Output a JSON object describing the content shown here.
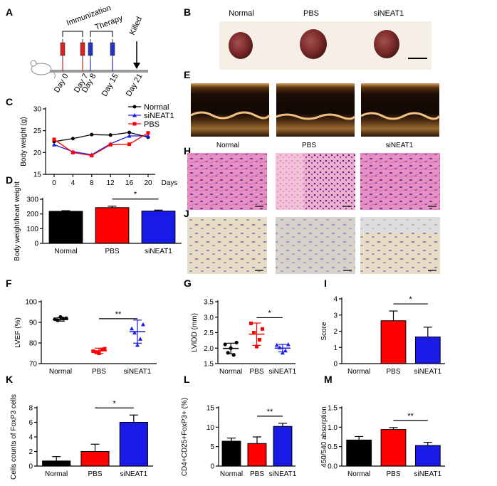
{
  "figure": {
    "panel_labels": [
      "A",
      "B",
      "C",
      "D",
      "E",
      "F",
      "G",
      "H",
      "I",
      "J",
      "K",
      "L",
      "M"
    ]
  },
  "panel_a": {
    "events": [
      "Immunization",
      "Therapy",
      "Killed"
    ],
    "days": [
      "Day 0",
      "Day 7",
      "Day 8",
      "Day 15",
      "Day 21"
    ]
  },
  "panel_b": {
    "labels": [
      "Normal",
      "PBS",
      "siNEAT1"
    ]
  },
  "panel_h": {
    "labels": [
      "Normal",
      "PBS",
      "siNEAT1"
    ]
  },
  "colors": {
    "normal": "#000000",
    "pbs": "#ff0000",
    "sineat1": "#1a1ae6"
  },
  "chart_data": [
    {
      "id": "C",
      "type": "line",
      "xlabel": "Days",
      "ylabel": "Body weight (g)",
      "x": [
        0,
        4,
        8,
        12,
        16,
        20
      ],
      "ylim": [
        15,
        30
      ],
      "xticks": [
        "0",
        "4",
        "8",
        "12",
        "16",
        "20"
      ],
      "yticks": [
        "15",
        "20",
        "25",
        "30"
      ],
      "series": [
        {
          "name": "Normal",
          "values": [
            22.5,
            23.2,
            24.1,
            24.0,
            24.6,
            23.5
          ]
        },
        {
          "name": "siNEAT1",
          "values": [
            21.8,
            20.2,
            19.5,
            22.0,
            23.8,
            23.8
          ]
        },
        {
          "name": "PBS",
          "values": [
            23.0,
            20.0,
            19.3,
            21.8,
            21.9,
            24.5
          ]
        }
      ]
    },
    {
      "id": "D",
      "type": "bar",
      "ylabel": "Body weight/heart weight",
      "categories": [
        "Normal",
        "PBS",
        "siNEAT1"
      ],
      "values": [
        218,
        243,
        220
      ],
      "errors": [
        4,
        10,
        6
      ],
      "ylim": [
        0,
        300
      ],
      "yticks": [
        "0",
        "100",
        "200",
        "300"
      ],
      "significance": {
        "from": 1,
        "to": 2,
        "label": "*"
      }
    },
    {
      "id": "F",
      "type": "scatter",
      "ylabel": "LVEF (%)",
      "categories": [
        "Normal",
        "PBS",
        "siNEAT1"
      ],
      "points": [
        [
          91.5,
          92.0,
          91.0,
          91.8,
          92.6
        ],
        [
          76.0,
          77.2,
          75.5,
          76.8,
          75.0
        ],
        [
          87.0,
          89.0,
          85.0,
          82.0,
          79.0
        ]
      ],
      "means": [
        91.4,
        76.2,
        85.5
      ],
      "sd": [
        0.8,
        1.3,
        5.6
      ],
      "ylim": [
        70,
        100
      ],
      "yticks": [
        "70",
        "80",
        "90",
        "100"
      ],
      "significance": {
        "from": 1,
        "to": 2,
        "label": "**"
      }
    },
    {
      "id": "G",
      "type": "scatter",
      "ylabel": "LVIDD (mm)",
      "categories": [
        "Normal",
        "PBS",
        "siNEAT1"
      ],
      "points": [
        [
          2.12,
          2.18,
          1.85,
          1.78,
          2.0
        ],
        [
          2.8,
          2.62,
          2.5,
          2.27,
          2.05
        ],
        [
          2.1,
          2.12,
          2.02,
          1.92,
          1.85
        ]
      ],
      "means": [
        1.99,
        2.45,
        2.0
      ],
      "sd": [
        0.17,
        0.36,
        0.12
      ],
      "ylim": [
        1.5,
        3.5
      ],
      "yticks": [
        "1.5",
        "2.0",
        "2.5",
        "3.0",
        "3.5"
      ],
      "significance": {
        "from": 1,
        "to": 2,
        "label": "*"
      }
    },
    {
      "id": "I",
      "type": "bar",
      "ylabel": "Score",
      "categories": [
        "Normal",
        "PBS",
        "siNEAT1"
      ],
      "values": [
        0,
        2.65,
        1.65
      ],
      "errors": [
        0,
        0.6,
        0.6
      ],
      "ylim": [
        0,
        4
      ],
      "yticks": [
        "0",
        "1",
        "2",
        "3",
        "4"
      ],
      "significance": {
        "from": 1,
        "to": 2,
        "label": "*"
      }
    },
    {
      "id": "K",
      "type": "bar",
      "ylabel": "Cells counts of FoxP3 cells",
      "categories": [
        "Normal",
        "PBS",
        "siNEAT1"
      ],
      "values": [
        0.7,
        2.0,
        6.0
      ],
      "errors": [
        0.6,
        1.0,
        1.0
      ],
      "ylim": [
        0,
        8
      ],
      "yticks": [
        "0",
        "2",
        "4",
        "6",
        "8"
      ],
      "significance": {
        "from": 1,
        "to": 2,
        "label": "*"
      }
    },
    {
      "id": "L",
      "type": "bar",
      "ylabel": "CD4+CD25+FoxP3+ (%)",
      "categories": [
        "Normal",
        "PBS",
        "siNEAT1"
      ],
      "values": [
        6.4,
        5.8,
        10.2
      ],
      "errors": [
        0.8,
        1.7,
        0.8
      ],
      "ylim": [
        0,
        15
      ],
      "yticks": [
        "0",
        "5",
        "10",
        "15"
      ],
      "significance": {
        "from": 1,
        "to": 2,
        "label": "**"
      }
    },
    {
      "id": "M",
      "type": "bar",
      "ylabel": "450/540 absorption",
      "categories": [
        "Normal",
        "PBS",
        "siNEAT1"
      ],
      "values": [
        0.67,
        0.94,
        0.53
      ],
      "errors": [
        0.09,
        0.05,
        0.08
      ],
      "ylim": [
        0,
        1.5
      ],
      "yticks": [
        "0.0",
        "0.5",
        "1.0",
        "1.5"
      ],
      "significance": {
        "from": 1,
        "to": 2,
        "label": "**"
      }
    }
  ]
}
